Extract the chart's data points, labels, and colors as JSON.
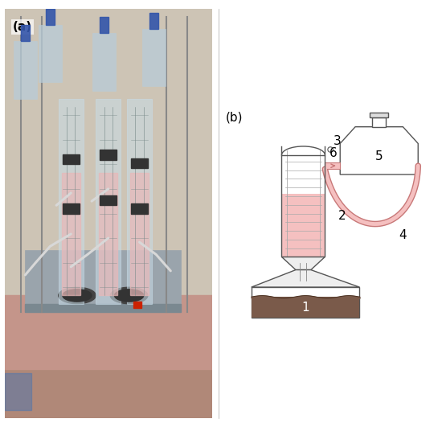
{
  "panel_a_label": "(a)",
  "panel_b_label": "(b)",
  "pink_color": "#f5c0c0",
  "dark_pink": "#c87878",
  "brown_color": "#7a5a4a",
  "line_color": "#555555",
  "background": "#ffffff",
  "bottle_fill": "#ffffff",
  "funnel_fill": "#eeeeee",
  "tube_outer_color": "#888888",
  "gray_light": "#dddddd"
}
